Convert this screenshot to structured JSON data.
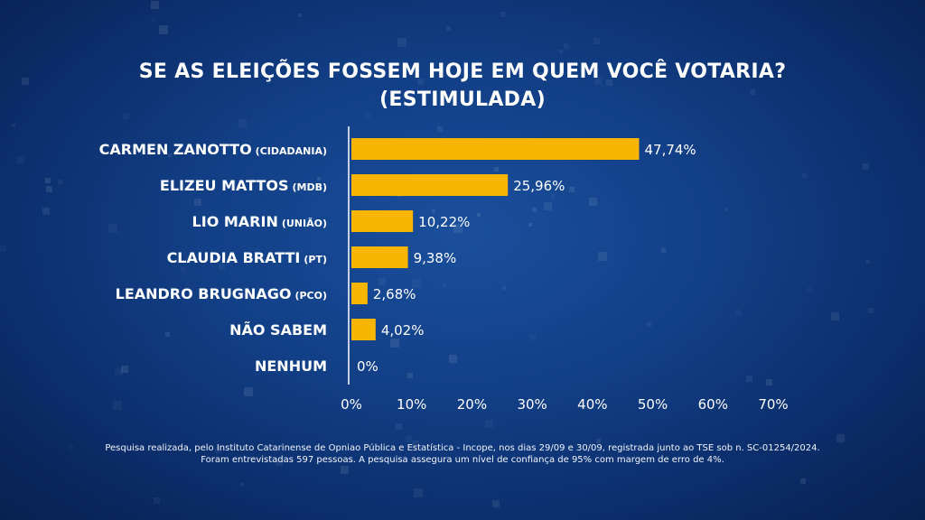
{
  "colors": {
    "bar": "#F7B500",
    "text": "#FFFFFF",
    "axis": "#FFFFFF"
  },
  "title": {
    "line1": "SE AS ELEIÇÕES FOSSEM HOJE EM QUEM VOCÊ VOTARIA?",
    "line2": "(ESTIMULADA)"
  },
  "chart_data": {
    "type": "bar",
    "orientation": "horizontal",
    "categories": [
      {
        "name": "CARMEN ZANOTTO",
        "party": "(CIDADANIA)"
      },
      {
        "name": "ELIZEU MATTOS",
        "party": "(MDB)"
      },
      {
        "name": "LIO MARIN",
        "party": "(UNIÃO)"
      },
      {
        "name": "CLAUDIA BRATTI",
        "party": "(PT)"
      },
      {
        "name": "LEANDRO BRUGNAGO",
        "party": "(PCO)"
      },
      {
        "name": "NÃO SABEM",
        "party": ""
      },
      {
        "name": "NENHUM",
        "party": ""
      }
    ],
    "values": [
      47.74,
      25.96,
      10.22,
      9.38,
      2.68,
      4.02,
      0
    ],
    "value_labels": [
      "47,74%",
      "25,96%",
      "10,22%",
      "9,38%",
      "2,68%",
      "4,02%",
      "0%"
    ],
    "xlim": [
      0,
      70
    ],
    "x_ticks": [
      0,
      10,
      20,
      30,
      40,
      50,
      60,
      70
    ],
    "x_tick_labels": [
      "0%",
      "10%",
      "20%",
      "30%",
      "40%",
      "50%",
      "60%",
      "70%"
    ],
    "grid": false
  },
  "footnote": {
    "line1": "Pesquisa realizada, pelo Instituto Catarinense de Opniao Pública e Estatística - Incope, nos dias 29/09 e 30/09, registrada junto ao TSE sob n. SC-01254/2024.",
    "line2": "Foram entrevistadas 597 pessoas. A pesquisa assegura um nível de confiança de 95% com margem de erro de 4%."
  }
}
